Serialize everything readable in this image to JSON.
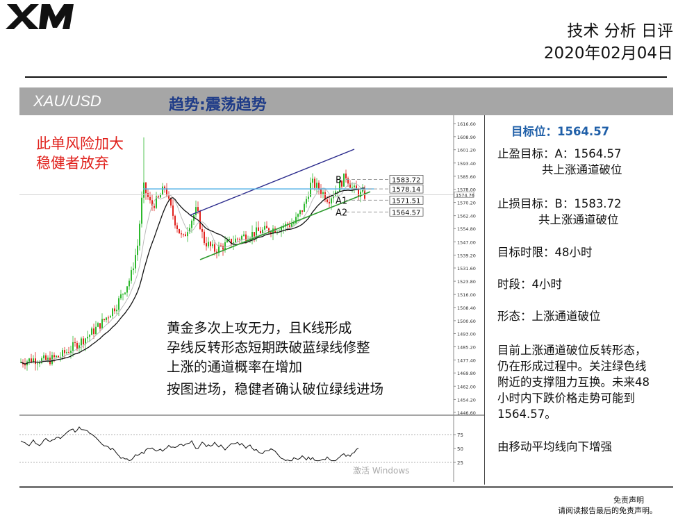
{
  "header": {
    "title": "技术 分析 日评",
    "date": "2020年02月04日"
  },
  "banner": {
    "symbol": "XAU/USD",
    "trend": "趋势:震荡趋势"
  },
  "chart_overlay": {
    "risk_lines": [
      "此单风险加大",
      "稳健者放弃"
    ],
    "analysis_lines": [
      "黄金多次上攻无力，且K线形成",
      "孕线反转形态短期跌破蓝绿线修整",
      "上涨的通道概率在增加",
      "按图进场，稳健者确认破位绿线进场"
    ],
    "watermark": "激活 Windows"
  },
  "chart_data": {
    "type": "candlestick",
    "ylim": [
      1440,
      1620
    ],
    "y_ticks": [
      "1616.60",
      "1608.90",
      "1601.20",
      "1593.40",
      "1585.60",
      "1578.00",
      "1570.20",
      "1562.40",
      "1554.80",
      "1547.00",
      "1539.20",
      "1531.60",
      "1523.80",
      "1516.00",
      "1508.40",
      "1500.60",
      "1493.00",
      "1485.20",
      "1477.40",
      "1469.80",
      "1462.00",
      "1454.20",
      "1446.60"
    ],
    "current_price": "1574.76",
    "levels": [
      {
        "label": "B",
        "value": 1583.72,
        "tag": "1583.72"
      },
      {
        "label": "",
        "value": 1578.14,
        "tag": "1578.14"
      },
      {
        "label": "A1",
        "value": 1571.51,
        "tag": "1571.51"
      },
      {
        "label": "A2",
        "value": 1564.57,
        "tag": "1564.57"
      }
    ],
    "oscillator": {
      "y_ticks": [
        "75",
        "50",
        "25"
      ],
      "range": [
        0,
        100
      ]
    }
  },
  "panel": {
    "target": "目标位：1564.57",
    "take_profit": [
      "止盈目标：A：1564.57",
      "共上涨通道破位"
    ],
    "stop_loss": [
      "止损目标：B：1583.72",
      "共上涨通道破位"
    ],
    "time_limit": "目标时限：48小时",
    "period": "时段：4小时",
    "pattern": "形态：上涨通道破位",
    "description": [
      "目前上涨通道破位反转形态，",
      "仍在形成过程中。关注绿色线",
      "附近的支撑阻力互换。未来48",
      "小时内下跌价格走势可能到",
      "1564.57。"
    ],
    "ma_note": "由移动平均线向下增强"
  },
  "disclaimer": {
    "title": "免责声明",
    "text": "请阅读报告最后的免责声明。"
  }
}
